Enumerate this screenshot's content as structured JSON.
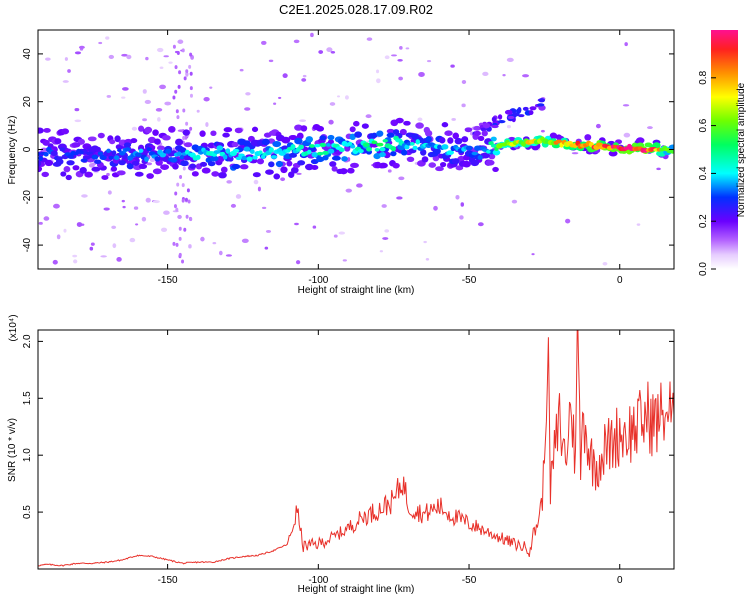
{
  "title": "C2E1.2025.028.17.09.R02",
  "chart_data": [
    {
      "type": "heatmap",
      "xlabel": "Height of straight line (km)",
      "ylabel": "Frequency (Hz)",
      "xlim": [
        -193,
        18
      ],
      "ylim": [
        -50,
        50
      ],
      "xticks": [
        -150,
        -100,
        -50,
        0
      ],
      "yticks": [
        -40,
        -20,
        0,
        20,
        40
      ],
      "colorbar": {
        "label": "Normalized spectral amplitude",
        "range": [
          0,
          1
        ],
        "ticks": [
          0.0,
          0.2,
          0.4,
          0.6,
          0.8
        ]
      },
      "ridge": {
        "x": [
          -193,
          -180,
          -170,
          -160,
          -150,
          -140,
          -130,
          -120,
          -110,
          -100,
          -90,
          -80,
          -75,
          -70,
          -60,
          -50,
          -45,
          -40,
          -30,
          -25,
          -20,
          -10,
          0,
          10,
          16
        ],
        "amp": [
          0.3,
          0.28,
          0.3,
          0.35,
          0.35,
          0.4,
          0.4,
          0.42,
          0.45,
          0.45,
          0.45,
          0.5,
          0.45,
          0.4,
          0.38,
          0.35,
          0.3,
          0.7,
          0.72,
          0.68,
          0.8,
          0.9,
          0.98,
          0.95,
          0.6
        ]
      }
    },
    {
      "type": "line",
      "xlabel": "Height of straight line (km)",
      "ylabel": "SNR (10 * v/v)",
      "yscale_label": "(x10⁴)",
      "xlim": [
        -193,
        18
      ],
      "ylim": [
        0,
        2.1
      ],
      "xticks": [
        -150,
        -100,
        -50,
        0
      ],
      "yticks": [
        0.5,
        1.0,
        1.5,
        2.0
      ],
      "ytick_labels": [
        "0.5",
        "1.0",
        "1.5",
        "2.0"
      ],
      "series": [
        {
          "color": "#e8312a",
          "x": [
            -193,
            -190,
            -185,
            -180,
            -175,
            -170,
            -165,
            -160,
            -155,
            -150,
            -145,
            -140,
            -135,
            -130,
            -125,
            -120,
            -115,
            -110,
            -107,
            -105,
            -100,
            -95,
            -90,
            -85,
            -80,
            -75,
            -72,
            -70,
            -65,
            -60,
            -55,
            -50,
            -45,
            -40,
            -35,
            -30,
            -28,
            -26,
            -25,
            -24,
            -23,
            -22,
            -20,
            -18,
            -16,
            -15,
            -14,
            -13,
            -12,
            -10,
            -8,
            -5,
            -3,
            0,
            3,
            6,
            9,
            12,
            15,
            18
          ],
          "y": [
            0.03,
            0.04,
            0.03,
            0.05,
            0.05,
            0.06,
            0.08,
            0.12,
            0.11,
            0.08,
            0.05,
            0.06,
            0.06,
            0.09,
            0.11,
            0.12,
            0.16,
            0.22,
            0.52,
            0.2,
            0.22,
            0.28,
            0.36,
            0.46,
            0.52,
            0.6,
            0.78,
            0.55,
            0.48,
            0.55,
            0.46,
            0.4,
            0.34,
            0.28,
            0.22,
            0.18,
            0.35,
            0.55,
            0.9,
            2.1,
            0.7,
            0.95,
            1.3,
            0.95,
            1.5,
            0.95,
            2.06,
            0.9,
            1.4,
            1.0,
            0.9,
            1.05,
            1.1,
            1.2,
            1.2,
            1.25,
            1.35,
            1.28,
            1.4,
            1.35
          ]
        }
      ]
    }
  ]
}
